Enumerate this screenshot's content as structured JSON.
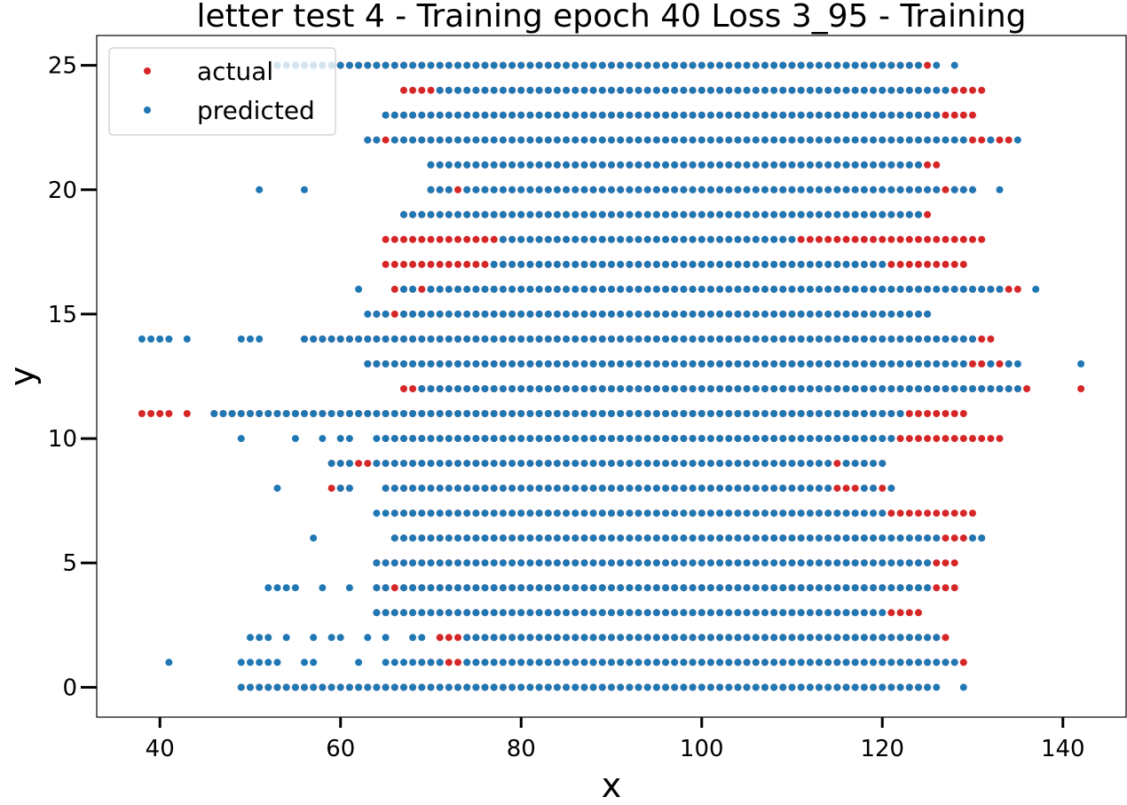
{
  "chart_data": {
    "type": "scatter",
    "title": "letter test 4 - Training epoch 40 Loss 3_95 - Training",
    "xlabel": "x",
    "ylabel": "y",
    "xlim": [
      33,
      147
    ],
    "ylim": [
      -1.2,
      26.2
    ],
    "xticks": [
      40,
      60,
      80,
      100,
      120,
      140
    ],
    "yticks": [
      0,
      5,
      10,
      15,
      20,
      25
    ],
    "grid": false,
    "legend": "upper-left",
    "series": [
      {
        "name": "actual",
        "color": "#d62728",
        "rows": [
          {
            "y": 0,
            "ranges": [
              [
                49,
                125
              ]
            ]
          },
          {
            "y": 1,
            "ranges": [
              [
                69,
                129
              ]
            ]
          },
          {
            "y": 2,
            "ranges": [
              [
                71,
                127
              ]
            ]
          },
          {
            "y": 3,
            "ranges": [
              [
                64,
                124
              ]
            ]
          },
          {
            "y": 4,
            "ranges": [
              [
                64,
                128
              ]
            ]
          },
          {
            "y": 5,
            "ranges": [
              [
                64,
                128
              ]
            ]
          },
          {
            "y": 6,
            "ranges": [
              [
                66,
                131
              ]
            ]
          },
          {
            "y": 7,
            "ranges": [
              [
                66,
                130
              ]
            ]
          },
          {
            "y": 8,
            "ranges": [
              [
                59,
                61
              ],
              [
                65,
                121
              ]
            ]
          },
          {
            "y": 9,
            "ranges": [
              [
                59,
                120
              ]
            ]
          },
          {
            "y": 10,
            "ranges": [
              [
                65,
                133
              ]
            ]
          },
          {
            "y": 11,
            "ranges": [
              [
                38,
                41
              ],
              [
                43,
                43
              ],
              [
                46,
                129
              ]
            ]
          },
          {
            "y": 12,
            "ranges": [
              [
                67,
                136
              ]
            ],
            "extra": [
              142
            ]
          },
          {
            "y": 13,
            "ranges": [
              [
                63,
                134
              ]
            ]
          },
          {
            "y": 14,
            "ranges": [
              [
                56,
                132
              ]
            ]
          },
          {
            "y": 15,
            "ranges": [
              [
                64,
                125
              ]
            ]
          },
          {
            "y": 16,
            "ranges": [
              [
                66,
                135
              ]
            ]
          },
          {
            "y": 17,
            "ranges": [
              [
                65,
                129
              ]
            ]
          },
          {
            "y": 18,
            "ranges": [
              [
                65,
                131
              ]
            ]
          },
          {
            "y": 19,
            "ranges": [
              [
                67,
                125
              ]
            ]
          },
          {
            "y": 20,
            "ranges": [
              [
                70,
                130
              ]
            ]
          },
          {
            "y": 21,
            "ranges": [
              [
                70,
                126
              ]
            ]
          },
          {
            "y": 22,
            "ranges": [
              [
                63,
                134
              ]
            ]
          },
          {
            "y": 23,
            "ranges": [
              [
                65,
                130
              ]
            ]
          },
          {
            "y": 24,
            "ranges": [
              [
                67,
                131
              ]
            ]
          },
          {
            "y": 25,
            "ranges": [
              [
                56,
                125
              ]
            ]
          }
        ]
      },
      {
        "name": "predicted",
        "color": "#1f77b4",
        "rows": [
          {
            "y": 0,
            "ranges": [
              [
                49,
                126
              ]
            ],
            "extra": [
              129
            ]
          },
          {
            "y": 1,
            "ranges": [
              [
                49,
                53
              ],
              [
                56,
                57
              ],
              [
                62,
                62
              ],
              [
                65,
                71
              ],
              [
                74,
                128
              ]
            ],
            "extra": [
              41
            ]
          },
          {
            "y": 2,
            "ranges": [
              [
                50,
                52
              ],
              [
                54,
                54
              ],
              [
                57,
                57
              ],
              [
                59,
                60
              ],
              [
                63,
                63
              ],
              [
                65,
                65
              ],
              [
                68,
                69
              ],
              [
                74,
                126
              ]
            ]
          },
          {
            "y": 3,
            "ranges": [
              [
                64,
                120
              ]
            ]
          },
          {
            "y": 4,
            "ranges": [
              [
                52,
                55
              ],
              [
                58,
                58
              ],
              [
                61,
                61
              ],
              [
                64,
                65
              ],
              [
                67,
                125
              ]
            ]
          },
          {
            "y": 5,
            "ranges": [
              [
                64,
                125
              ]
            ]
          },
          {
            "y": 6,
            "ranges": [
              [
                66,
                126
              ]
            ],
            "extra": [
              57,
              130,
              131
            ]
          },
          {
            "y": 7,
            "ranges": [
              [
                64,
                120
              ]
            ]
          },
          {
            "y": 8,
            "ranges": [
              [
                60,
                61
              ],
              [
                65,
                114
              ],
              [
                118,
                119
              ]
            ],
            "extra": [
              53,
              121
            ]
          },
          {
            "y": 9,
            "ranges": [
              [
                59,
                61
              ],
              [
                64,
                114
              ],
              [
                116,
                120
              ]
            ]
          },
          {
            "y": 10,
            "ranges": [
              [
                58,
                58
              ],
              [
                60,
                61
              ],
              [
                64,
                121
              ]
            ],
            "extra": [
              49,
              55
            ]
          },
          {
            "y": 11,
            "ranges": [
              [
                46,
                122
              ]
            ]
          },
          {
            "y": 12,
            "ranges": [
              [
                69,
                133
              ]
            ],
            "extra": [
              134,
              135
            ]
          },
          {
            "y": 13,
            "ranges": [
              [
                63,
                129
              ]
            ],
            "extra": [
              132,
              134,
              135,
              142
            ]
          },
          {
            "y": 14,
            "ranges": [
              [
                38,
                41
              ],
              [
                43,
                43
              ],
              [
                49,
                51
              ],
              [
                56,
                130
              ]
            ]
          },
          {
            "y": 15,
            "ranges": [
              [
                63,
                65
              ],
              [
                67,
                125
              ]
            ]
          },
          {
            "y": 16,
            "ranges": [
              [
                62,
                62
              ],
              [
                67,
                68
              ],
              [
                70,
                133
              ]
            ],
            "extra": [
              137
            ]
          },
          {
            "y": 17,
            "ranges": [
              [
                77,
                120
              ]
            ]
          },
          {
            "y": 18,
            "ranges": [
              [
                78,
                110
              ]
            ]
          },
          {
            "y": 19,
            "ranges": [
              [
                67,
                124
              ]
            ]
          },
          {
            "y": 20,
            "ranges": [
              [
                70,
                72
              ],
              [
                74,
                126
              ]
            ],
            "extra": [
              51,
              56,
              128,
              129,
              130,
              133
            ]
          },
          {
            "y": 21,
            "ranges": [
              [
                70,
                124
              ]
            ]
          },
          {
            "y": 22,
            "ranges": [
              [
                63,
                64
              ],
              [
                66,
                129
              ]
            ],
            "extra": [
              132,
              135
            ]
          },
          {
            "y": 23,
            "ranges": [
              [
                65,
                126
              ]
            ]
          },
          {
            "y": 24,
            "ranges": [
              [
                71,
                127
              ]
            ]
          },
          {
            "y": 25,
            "ranges": [
              [
                53,
                56
              ],
              [
                57,
                124
              ]
            ],
            "extra": [
              126,
              128
            ]
          }
        ]
      }
    ]
  }
}
